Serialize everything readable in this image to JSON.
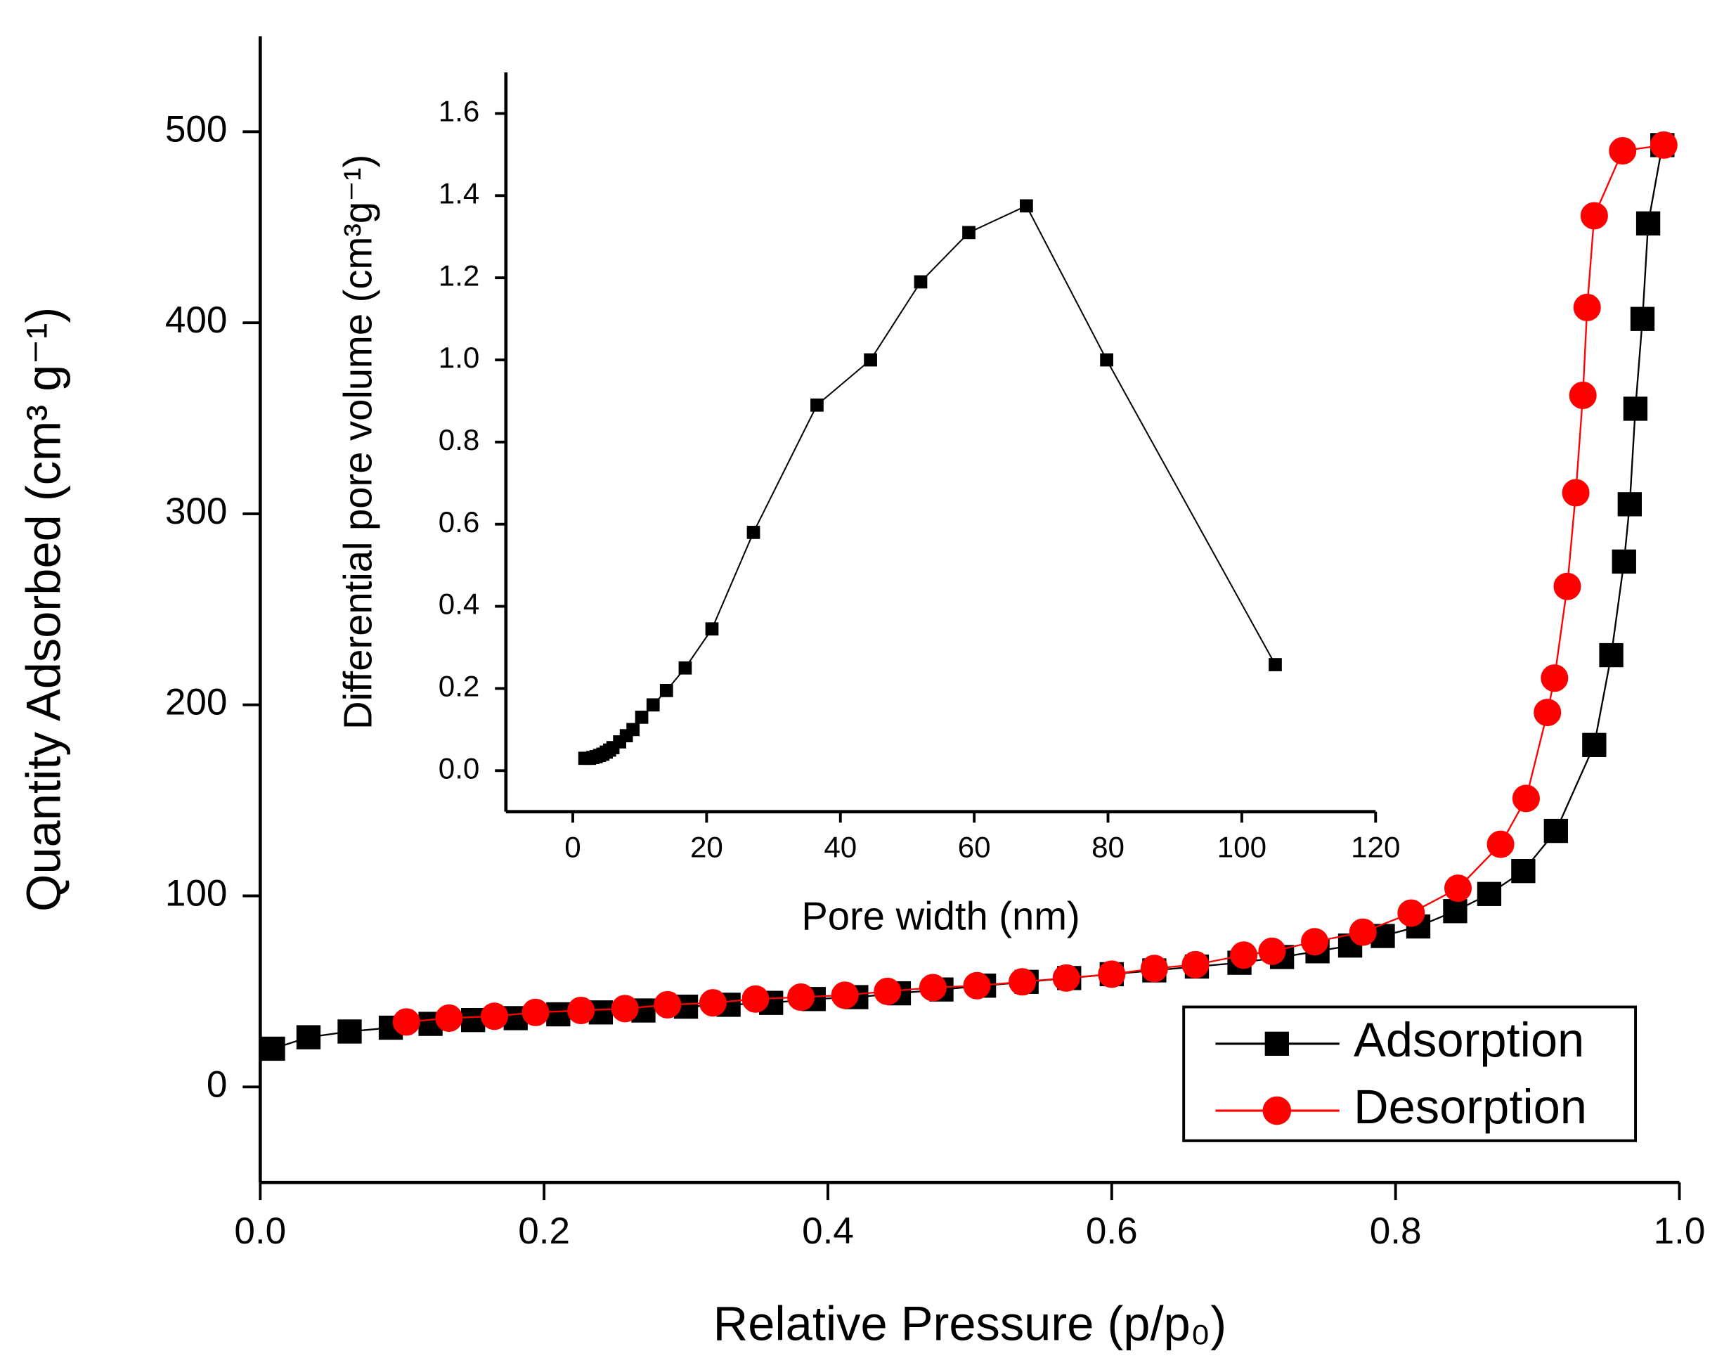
{
  "chart_data": [
    {
      "type": "line",
      "xlabel": "Relative Pressure (p/p₀)",
      "ylabel": "Quantity Adsorbed (cm³ g⁻¹)",
      "xlim": [
        0,
        1.0
      ],
      "ylim": [
        -50,
        550
      ],
      "xticks": [
        {
          "value": 0,
          "label": "0.0"
        },
        0.2,
        0.4,
        0.6,
        0.8,
        {
          "value": 1.0,
          "label": "1.0"
        }
      ],
      "yticks": [
        0,
        100,
        200,
        300,
        400,
        500
      ],
      "legend": "lower right",
      "series": [
        {
          "name": "Adsorption",
          "color": "#000000",
          "marker": "square",
          "x": [
            0.009,
            0.034,
            0.063,
            0.092,
            0.12,
            0.15,
            0.18,
            0.21,
            0.24,
            0.27,
            0.3,
            0.33,
            0.36,
            0.39,
            0.42,
            0.45,
            0.48,
            0.51,
            0.54,
            0.57,
            0.6,
            0.63,
            0.66,
            0.69,
            0.72,
            0.745,
            0.768,
            0.791,
            0.816,
            0.842,
            0.866,
            0.89,
            0.913,
            0.94,
            0.952,
            0.961,
            0.965,
            0.969,
            0.974,
            0.978,
            0.988
          ],
          "values": [
            20,
            26,
            29,
            31,
            33,
            35,
            36,
            38,
            39,
            40,
            42,
            43,
            44,
            46,
            47,
            49,
            51,
            53,
            55,
            57,
            59,
            61,
            63,
            65,
            68,
            71,
            74,
            79,
            84,
            92,
            101,
            113,
            134,
            179,
            226,
            275,
            305,
            355,
            402,
            452,
            493
          ]
        },
        {
          "name": "Desorption",
          "color": "#ff0000",
          "marker": "circle",
          "x": [
            0.103,
            0.133,
            0.165,
            0.194,
            0.226,
            0.257,
            0.287,
            0.319,
            0.349,
            0.381,
            0.412,
            0.442,
            0.474,
            0.505,
            0.537,
            0.568,
            0.6,
            0.63,
            0.659,
            0.693,
            0.713,
            0.743,
            0.777,
            0.811,
            0.844,
            0.874,
            0.892,
            0.907,
            0.912,
            0.921,
            0.927,
            0.932,
            0.935,
            0.94,
            0.96,
            0.989
          ],
          "values": [
            34,
            36,
            37,
            39,
            40,
            41,
            43,
            44,
            46,
            47,
            48,
            50,
            52,
            53,
            55,
            57,
            59,
            62,
            64,
            69,
            71,
            76,
            81,
            91,
            104,
            127,
            151,
            196,
            214,
            262,
            311,
            362,
            408,
            456,
            490,
            493
          ]
        }
      ]
    },
    {
      "type": "line",
      "xlabel": "Pore width (nm)",
      "ylabel": "Differential pore volume (cm³g⁻¹)",
      "xlim": [
        -10,
        120
      ],
      "ylim": [
        -0.1,
        1.7
      ],
      "xticks": [
        0,
        20,
        40,
        60,
        80,
        100,
        120
      ],
      "yticks": [
        {
          "value": 0,
          "label": "0.0"
        },
        0.2,
        0.4,
        0.6,
        0.8,
        {
          "value": 1.0,
          "label": "1.0"
        },
        1.2,
        1.4,
        1.6
      ],
      "series": [
        {
          "color": "#000000",
          "marker": "square",
          "x": [
            1.8,
            2.5,
            3,
            3.5,
            4,
            4.5,
            5,
            5.5,
            6,
            7,
            8,
            9,
            10.3,
            12,
            14,
            16.8,
            20.8,
            27,
            36.5,
            44.5,
            52,
            59.2,
            67.8,
            79.8,
            105
          ],
          "values": [
            0.03,
            0.03,
            0.032,
            0.034,
            0.037,
            0.04,
            0.045,
            0.05,
            0.056,
            0.07,
            0.085,
            0.1,
            0.13,
            0.16,
            0.195,
            0.25,
            0.345,
            0.58,
            0.89,
            1.0,
            1.19,
            1.31,
            1.375,
            1.0,
            0.258
          ]
        }
      ]
    }
  ]
}
